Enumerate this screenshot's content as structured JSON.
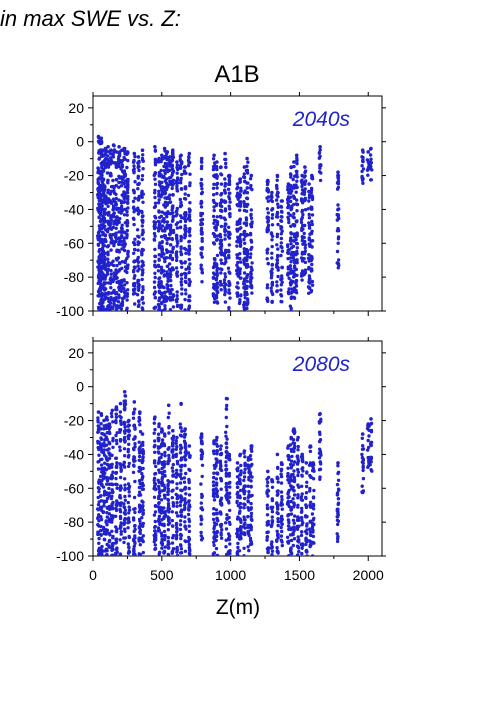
{
  "heading": "in max SWE vs. Z:",
  "chart_data": {
    "type": "scatter",
    "title": "A1B",
    "xlabel": "Z(m)",
    "ylabel": "",
    "xlim": [
      0,
      2100
    ],
    "ylim": [
      -100,
      27
    ],
    "x_ticks": [
      0,
      500,
      1000,
      1500,
      2000
    ],
    "y_ticks": [
      20,
      0,
      -20,
      -40,
      -60,
      -80,
      -100
    ],
    "marker_color": "#2222cc",
    "panels": [
      {
        "label": "2040s",
        "columns": [
          {
            "x": 40,
            "y_top": 3,
            "y_bottom": -100
          },
          {
            "x": 50,
            "y_top": 2,
            "y_bottom": -100
          },
          {
            "x": 60,
            "y_top": 2,
            "y_bottom": -100
          },
          {
            "x": 70,
            "y_top": -5,
            "y_bottom": -100
          },
          {
            "x": 80,
            "y_top": -8,
            "y_bottom": -100
          },
          {
            "x": 90,
            "y_top": -4,
            "y_bottom": -100
          },
          {
            "x": 110,
            "y_top": -3,
            "y_bottom": -100
          },
          {
            "x": 130,
            "y_top": -5,
            "y_bottom": -100
          },
          {
            "x": 150,
            "y_top": -2,
            "y_bottom": -100
          },
          {
            "x": 170,
            "y_top": -6,
            "y_bottom": -100
          },
          {
            "x": 190,
            "y_top": -3,
            "y_bottom": -100
          },
          {
            "x": 210,
            "y_top": -5,
            "y_bottom": -100
          },
          {
            "x": 230,
            "y_top": -4,
            "y_bottom": -100
          },
          {
            "x": 250,
            "y_top": -6,
            "y_bottom": -100
          },
          {
            "x": 300,
            "y_top": -7,
            "y_bottom": -100
          },
          {
            "x": 330,
            "y_top": -9,
            "y_bottom": -100
          },
          {
            "x": 360,
            "y_top": -5,
            "y_bottom": -100
          },
          {
            "x": 450,
            "y_top": -3,
            "y_bottom": -100
          },
          {
            "x": 480,
            "y_top": -10,
            "y_bottom": -100
          },
          {
            "x": 500,
            "y_top": -8,
            "y_bottom": -100
          },
          {
            "x": 520,
            "y_top": -4,
            "y_bottom": -100
          },
          {
            "x": 540,
            "y_top": -6,
            "y_bottom": -100
          },
          {
            "x": 560,
            "y_top": -9,
            "y_bottom": -100
          },
          {
            "x": 580,
            "y_top": -5,
            "y_bottom": -100
          },
          {
            "x": 610,
            "y_top": -12,
            "y_bottom": -100
          },
          {
            "x": 640,
            "y_top": -8,
            "y_bottom": -100
          },
          {
            "x": 670,
            "y_top": -15,
            "y_bottom": -100
          },
          {
            "x": 700,
            "y_top": -7,
            "y_bottom": -100
          },
          {
            "x": 790,
            "y_top": -10,
            "y_bottom": -90
          },
          {
            "x": 880,
            "y_top": -8,
            "y_bottom": -95
          },
          {
            "x": 900,
            "y_top": -12,
            "y_bottom": -100
          },
          {
            "x": 930,
            "y_top": -15,
            "y_bottom": -90
          },
          {
            "x": 960,
            "y_top": -7,
            "y_bottom": -95
          },
          {
            "x": 990,
            "y_top": -20,
            "y_bottom": -100
          },
          {
            "x": 1050,
            "y_top": -25,
            "y_bottom": -95
          },
          {
            "x": 1070,
            "y_top": -22,
            "y_bottom": -100
          },
          {
            "x": 1100,
            "y_top": -15,
            "y_bottom": -100
          },
          {
            "x": 1120,
            "y_top": -10,
            "y_bottom": -100
          },
          {
            "x": 1150,
            "y_top": -20,
            "y_bottom": -90
          },
          {
            "x": 1270,
            "y_top": -23,
            "y_bottom": -95
          },
          {
            "x": 1300,
            "y_top": -30,
            "y_bottom": -95
          },
          {
            "x": 1340,
            "y_top": -20,
            "y_bottom": -90
          },
          {
            "x": 1370,
            "y_top": -35,
            "y_bottom": -95
          },
          {
            "x": 1420,
            "y_top": -25,
            "y_bottom": -90
          },
          {
            "x": 1440,
            "y_top": -15,
            "y_bottom": -100
          },
          {
            "x": 1460,
            "y_top": -12,
            "y_bottom": -95
          },
          {
            "x": 1480,
            "y_top": -8,
            "y_bottom": -90
          },
          {
            "x": 1520,
            "y_top": -20,
            "y_bottom": -85
          },
          {
            "x": 1540,
            "y_top": -15,
            "y_bottom": -80
          },
          {
            "x": 1570,
            "y_top": -25,
            "y_bottom": -90
          },
          {
            "x": 1590,
            "y_top": -20,
            "y_bottom": -90
          },
          {
            "x": 1650,
            "y_top": -3,
            "y_bottom": -27
          },
          {
            "x": 1780,
            "y_top": -18,
            "y_bottom": -75
          },
          {
            "x": 1960,
            "y_top": -5,
            "y_bottom": -32
          },
          {
            "x": 2000,
            "y_top": -6,
            "y_bottom": -20
          },
          {
            "x": 2020,
            "y_top": -4,
            "y_bottom": -25
          }
        ]
      },
      {
        "label": "2080s",
        "columns": [
          {
            "x": 40,
            "y_top": -15,
            "y_bottom": -100
          },
          {
            "x": 60,
            "y_top": -16,
            "y_bottom": -100
          },
          {
            "x": 80,
            "y_top": -20,
            "y_bottom": -100
          },
          {
            "x": 100,
            "y_top": -18,
            "y_bottom": -100
          },
          {
            "x": 120,
            "y_top": -22,
            "y_bottom": -100
          },
          {
            "x": 140,
            "y_top": -14,
            "y_bottom": -100
          },
          {
            "x": 170,
            "y_top": -12,
            "y_bottom": -100
          },
          {
            "x": 200,
            "y_top": -10,
            "y_bottom": -100
          },
          {
            "x": 230,
            "y_top": -3,
            "y_bottom": -100
          },
          {
            "x": 260,
            "y_top": -20,
            "y_bottom": -100
          },
          {
            "x": 300,
            "y_top": -9,
            "y_bottom": -100
          },
          {
            "x": 340,
            "y_top": -15,
            "y_bottom": -100
          },
          {
            "x": 360,
            "y_top": -28,
            "y_bottom": -100
          },
          {
            "x": 450,
            "y_top": -18,
            "y_bottom": -100
          },
          {
            "x": 480,
            "y_top": -22,
            "y_bottom": -100
          },
          {
            "x": 500,
            "y_top": -25,
            "y_bottom": -100
          },
          {
            "x": 520,
            "y_top": -28,
            "y_bottom": -100
          },
          {
            "x": 550,
            "y_top": -11,
            "y_bottom": -100
          },
          {
            "x": 580,
            "y_top": -26,
            "y_bottom": -100
          },
          {
            "x": 610,
            "y_top": -30,
            "y_bottom": -100
          },
          {
            "x": 640,
            "y_top": -10,
            "y_bottom": -100
          },
          {
            "x": 670,
            "y_top": -25,
            "y_bottom": -100
          },
          {
            "x": 700,
            "y_top": -35,
            "y_bottom": -100
          },
          {
            "x": 790,
            "y_top": -28,
            "y_bottom": -95
          },
          {
            "x": 880,
            "y_top": -32,
            "y_bottom": -100
          },
          {
            "x": 900,
            "y_top": -30,
            "y_bottom": -100
          },
          {
            "x": 930,
            "y_top": -35,
            "y_bottom": -95
          },
          {
            "x": 970,
            "y_top": -7,
            "y_bottom": -100
          },
          {
            "x": 990,
            "y_top": -40,
            "y_bottom": -100
          },
          {
            "x": 1050,
            "y_top": -45,
            "y_bottom": -100
          },
          {
            "x": 1070,
            "y_top": -40,
            "y_bottom": -100
          },
          {
            "x": 1100,
            "y_top": -38,
            "y_bottom": -100
          },
          {
            "x": 1130,
            "y_top": -42,
            "y_bottom": -100
          },
          {
            "x": 1150,
            "y_top": -35,
            "y_bottom": -95
          },
          {
            "x": 1270,
            "y_top": -50,
            "y_bottom": -100
          },
          {
            "x": 1300,
            "y_top": -55,
            "y_bottom": -100
          },
          {
            "x": 1340,
            "y_top": -40,
            "y_bottom": -100
          },
          {
            "x": 1370,
            "y_top": -45,
            "y_bottom": -95
          },
          {
            "x": 1420,
            "y_top": -35,
            "y_bottom": -100
          },
          {
            "x": 1440,
            "y_top": -30,
            "y_bottom": -100
          },
          {
            "x": 1460,
            "y_top": -25,
            "y_bottom": -95
          },
          {
            "x": 1490,
            "y_top": -30,
            "y_bottom": -100
          },
          {
            "x": 1520,
            "y_top": -40,
            "y_bottom": -100
          },
          {
            "x": 1550,
            "y_top": -45,
            "y_bottom": -100
          },
          {
            "x": 1580,
            "y_top": -35,
            "y_bottom": -95
          },
          {
            "x": 1600,
            "y_top": -45,
            "y_bottom": -100
          },
          {
            "x": 1650,
            "y_top": -16,
            "y_bottom": -58
          },
          {
            "x": 1780,
            "y_top": -45,
            "y_bottom": -98
          },
          {
            "x": 1960,
            "y_top": -28,
            "y_bottom": -63
          },
          {
            "x": 2000,
            "y_top": -22,
            "y_bottom": -48
          },
          {
            "x": 2020,
            "y_top": -19,
            "y_bottom": -50
          }
        ]
      }
    ]
  }
}
